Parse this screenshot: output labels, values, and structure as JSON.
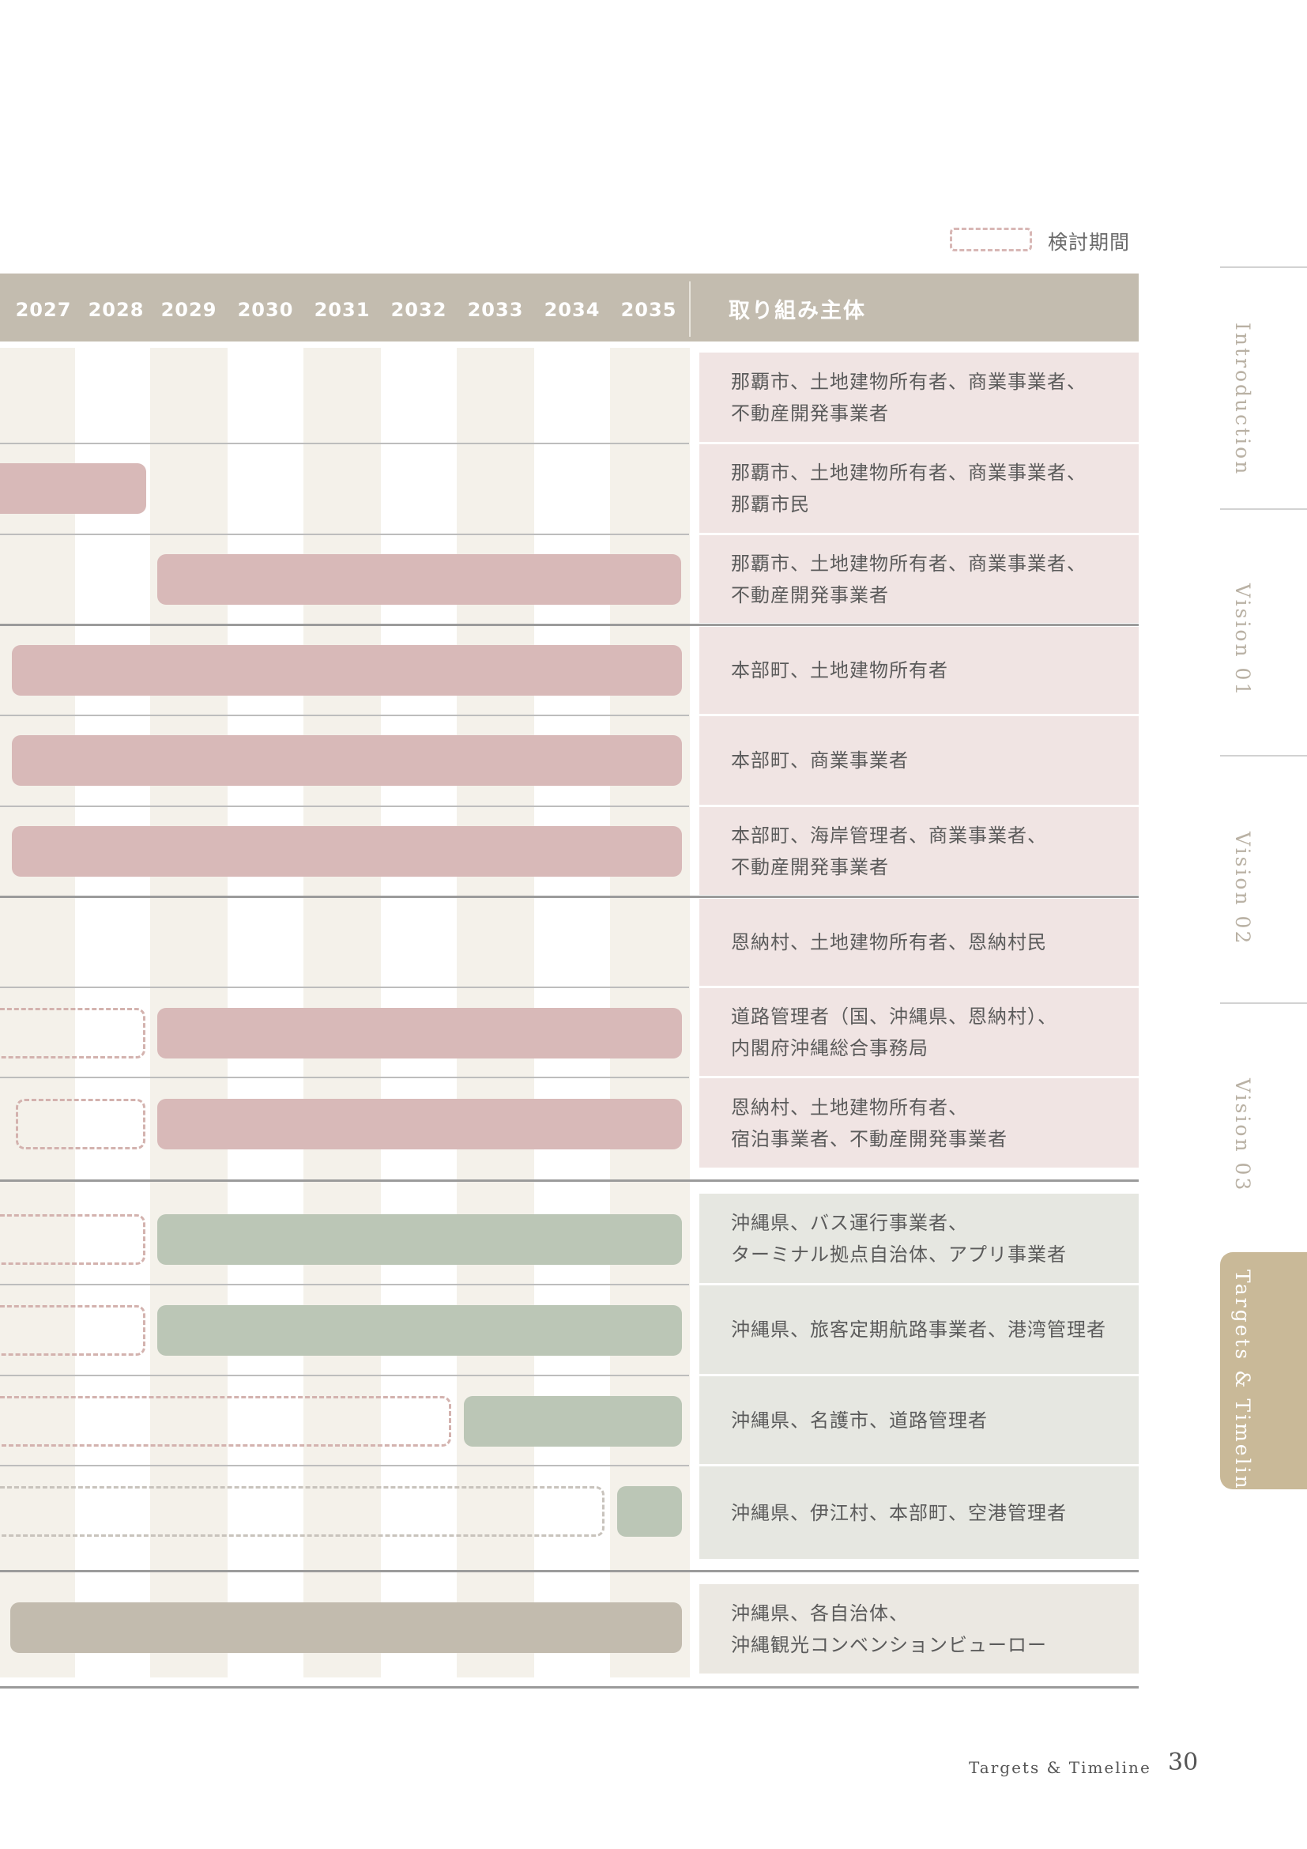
{
  "legend": {
    "label": "検討期間"
  },
  "header": {
    "years": [
      "2027",
      "2028",
      "2029",
      "2030",
      "2031",
      "2032",
      "2033",
      "2034",
      "2035"
    ],
    "actor_label": "取り組み主体"
  },
  "colors": {
    "implementation_pink": "#d8b9b8",
    "implementation_green": "#bbc6b6",
    "implementation_beige": "#c2bbae",
    "study_dashed": "#d3b2ae",
    "header": "#c3bcaf",
    "active_tab": "#c9b998"
  },
  "rows": [
    {
      "actors": [
        "那覇市、土地建物所有者、商業事業者、",
        "不動産開発事業者"
      ]
    },
    {
      "actors": [
        "那覇市、土地建物所有者、商業事業者、",
        "那覇市民"
      ]
    },
    {
      "actors": [
        "那覇市、土地建物所有者、商業事業者、",
        "不動産開発事業者"
      ]
    },
    {
      "actors": [
        "本部町、土地建物所有者"
      ]
    },
    {
      "actors": [
        "本部町、商業事業者"
      ]
    },
    {
      "actors": [
        "本部町、海岸管理者、商業事業者、",
        "不動産開発事業者"
      ]
    },
    {
      "actors": [
        "恩納村、土地建物所有者、恩納村民"
      ]
    },
    {
      "actors": [
        "道路管理者（国、沖縄県、恩納村）、",
        "内閣府沖縄総合事務局"
      ]
    },
    {
      "actors": [
        "恩納村、土地建物所有者、",
        "宿泊事業者、不動産開発事業者"
      ]
    },
    {
      "actors": [
        "沖縄県、バス運行事業者、",
        "ターミナル拠点自治体、アプリ事業者"
      ]
    },
    {
      "actors": [
        "沖縄県、旅客定期航路事業者、港湾管理者"
      ]
    },
    {
      "actors": [
        "沖縄県、名護市、道路管理者"
      ]
    },
    {
      "actors": [
        "沖縄県、伊江村、本部町、空港管理者"
      ]
    },
    {
      "actors": [
        "沖縄県、各自治体、",
        "沖縄観光コンベンションビューロー"
      ]
    }
  ],
  "nav": {
    "items": [
      "Introduction",
      "Vision 01",
      "Vision 02",
      "Vision 03",
      "Targets & Timeline"
    ],
    "active": "Targets & Timeline"
  },
  "footer": {
    "section": "Targets & Timeline",
    "page": "30"
  }
}
